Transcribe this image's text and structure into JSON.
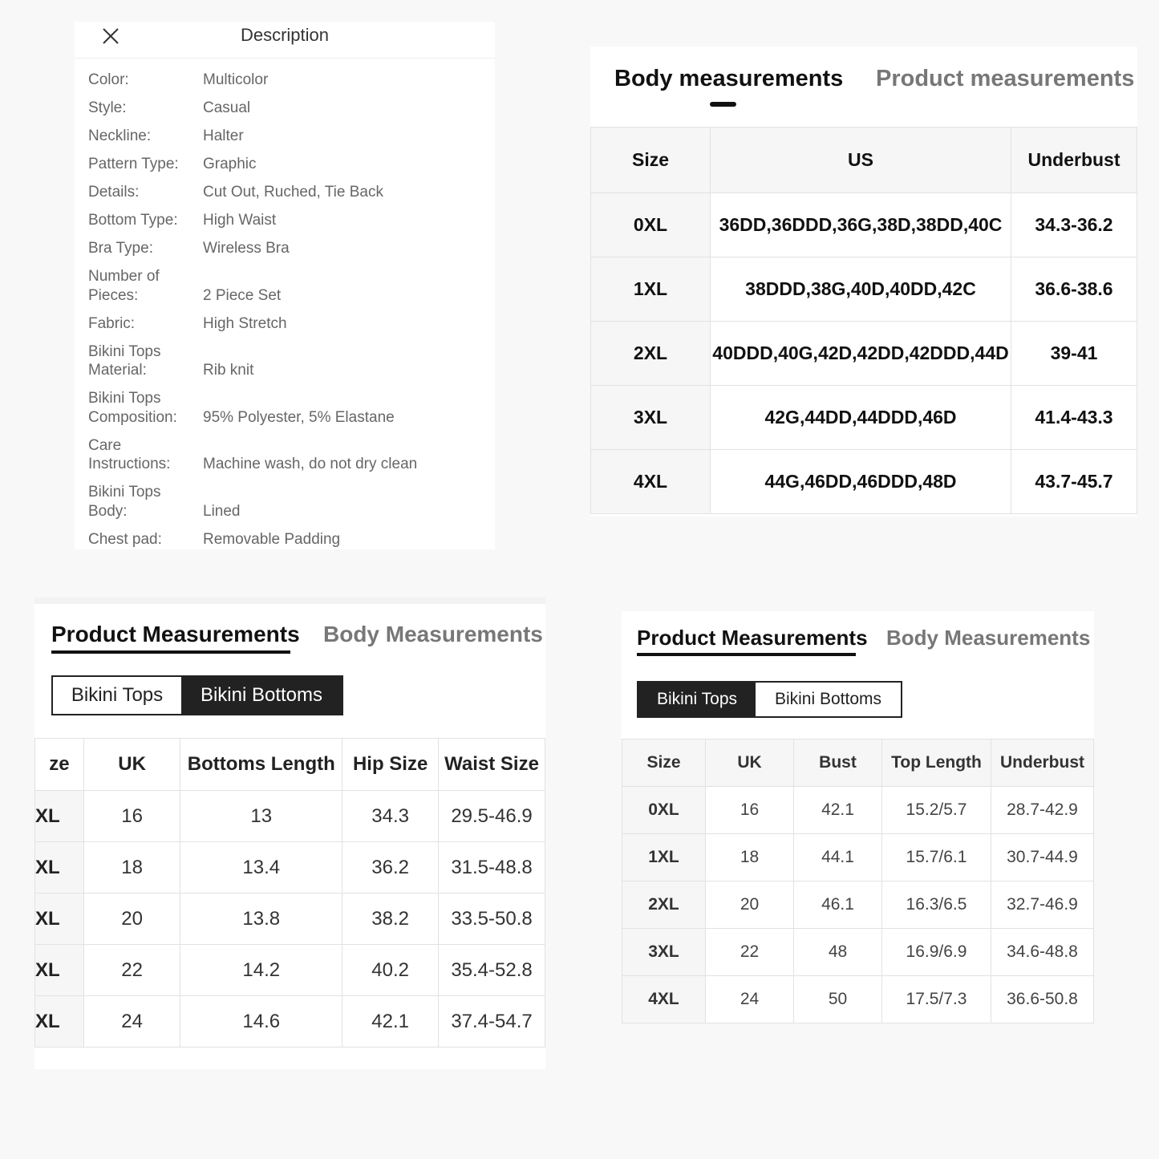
{
  "description": {
    "title": "Description",
    "rows": [
      [
        "Color:",
        "Multicolor"
      ],
      [
        "Style:",
        "Casual"
      ],
      [
        "Neckline:",
        "Halter"
      ],
      [
        "Pattern Type:",
        "Graphic"
      ],
      [
        "Details:",
        "Cut Out, Ruched, Tie Back"
      ],
      [
        "Bottom Type:",
        "High Waist"
      ],
      [
        "Bra Type:",
        "Wireless Bra"
      ],
      [
        "Number of Pieces:",
        "2 Piece Set"
      ],
      [
        "Fabric:",
        "High Stretch"
      ],
      [
        "Bikini Tops Material:",
        "Rib knit"
      ],
      [
        "Bikini Tops Composition:",
        "95% Polyester, 5% Elastane"
      ],
      [
        "Care Instructions:",
        "Machine wash, do not dry clean"
      ],
      [
        "Bikini Tops Body:",
        "Lined"
      ],
      [
        "Chest pad:",
        "Removable Padding"
      ]
    ]
  },
  "body_panel": {
    "tabs": [
      "Body measurements",
      "Product measurements"
    ],
    "header": [
      "Size",
      "US",
      "Underbust"
    ],
    "rows": [
      [
        "0XL",
        "36DD,36DDD,36G,38D,38DD,40C",
        "34.3-36.2"
      ],
      [
        "1XL",
        "38DDD,38G,40D,40DD,42C",
        "36.6-38.6"
      ],
      [
        "2XL",
        "40DDD,40G,42D,42DD,42DDD,44D",
        "39-41"
      ],
      [
        "3XL",
        "42G,44DD,44DDD,46D",
        "41.4-43.3"
      ],
      [
        "4XL",
        "44G,46DD,46DDD,48D",
        "43.7-45.7"
      ]
    ]
  },
  "bottoms_panel": {
    "tabs": [
      "Product Measurements",
      "Body Measurements"
    ],
    "buttons": [
      "Bikini Tops",
      "Bikini Bottoms"
    ],
    "header": [
      "ze",
      "UK",
      "Bottoms Length",
      "Hip Size",
      "Waist Size"
    ],
    "rows": [
      [
        "XL",
        "16",
        "13",
        "34.3",
        "29.5-46.9"
      ],
      [
        "XL",
        "18",
        "13.4",
        "36.2",
        "31.5-48.8"
      ],
      [
        "XL",
        "20",
        "13.8",
        "38.2",
        "33.5-50.8"
      ],
      [
        "XL",
        "22",
        "14.2",
        "40.2",
        "35.4-52.8"
      ],
      [
        "XL",
        "24",
        "14.6",
        "42.1",
        "37.4-54.7"
      ]
    ]
  },
  "tops_panel": {
    "tabs": [
      "Product Measurements",
      "Body Measurements"
    ],
    "buttons": [
      "Bikini Tops",
      "Bikini Bottoms"
    ],
    "header": [
      "Size",
      "UK",
      "Bust",
      "Top Length",
      "Underbust"
    ],
    "rows": [
      [
        "0XL",
        "16",
        "42.1",
        "15.2/5.7",
        "28.7-42.9"
      ],
      [
        "1XL",
        "18",
        "44.1",
        "15.7/6.1",
        "30.7-44.9"
      ],
      [
        "2XL",
        "20",
        "46.1",
        "16.3/6.5",
        "32.7-46.9"
      ],
      [
        "3XL",
        "22",
        "48",
        "16.9/6.9",
        "34.6-48.8"
      ],
      [
        "4XL",
        "24",
        "50",
        "17.5/7.3",
        "36.6-50.8"
      ]
    ]
  }
}
